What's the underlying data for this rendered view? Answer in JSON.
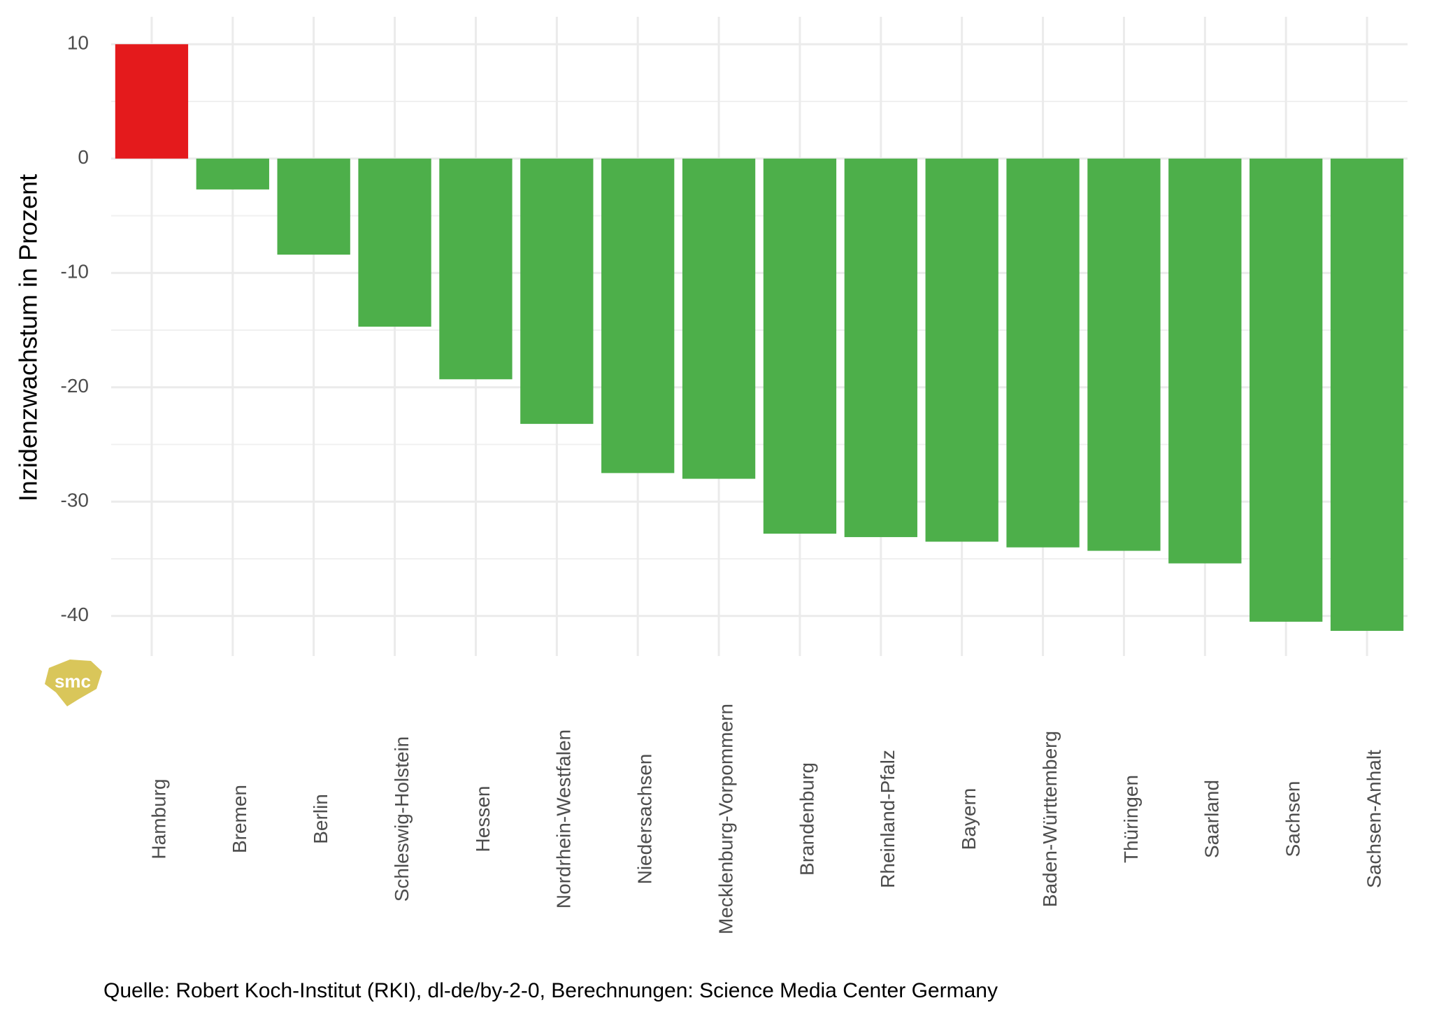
{
  "chart_data": {
    "type": "bar",
    "ylabel": "Inzidenzwachstum in Prozent",
    "caption": "Quelle: Robert Koch-Institut (RKI), dl-de/by-2-0, Berechnungen: Science Media Center Germany",
    "logo": "smc",
    "categories": [
      "Hamburg",
      "Bremen",
      "Berlin",
      "Schleswig-Holstein",
      "Hessen",
      "Nordrhein-Westfalen",
      "Niedersachsen",
      "Mecklenburg-Vorpommern",
      "Brandenburg",
      "Rheinland-Pfalz",
      "Bayern",
      "Baden-Württemberg",
      "Thüringen",
      "Saarland",
      "Sachsen",
      "Sachsen-Anhalt"
    ],
    "values": [
      10,
      -2.7,
      -8.4,
      -14.7,
      -19.3,
      -23.2,
      -27.5,
      -28.0,
      -32.8,
      -33.1,
      -33.5,
      -34.0,
      -34.3,
      -35.4,
      -40.5,
      -41.3
    ],
    "positive_color": "#e41a1c",
    "negative_color": "#4daf4a",
    "ylim": [
      -43.5,
      12.4
    ],
    "yticks": [
      -40,
      -30,
      -20,
      -10,
      0,
      10
    ],
    "minor_yticks": [
      -35,
      -25,
      -15,
      -5,
      5
    ],
    "grid": true
  }
}
